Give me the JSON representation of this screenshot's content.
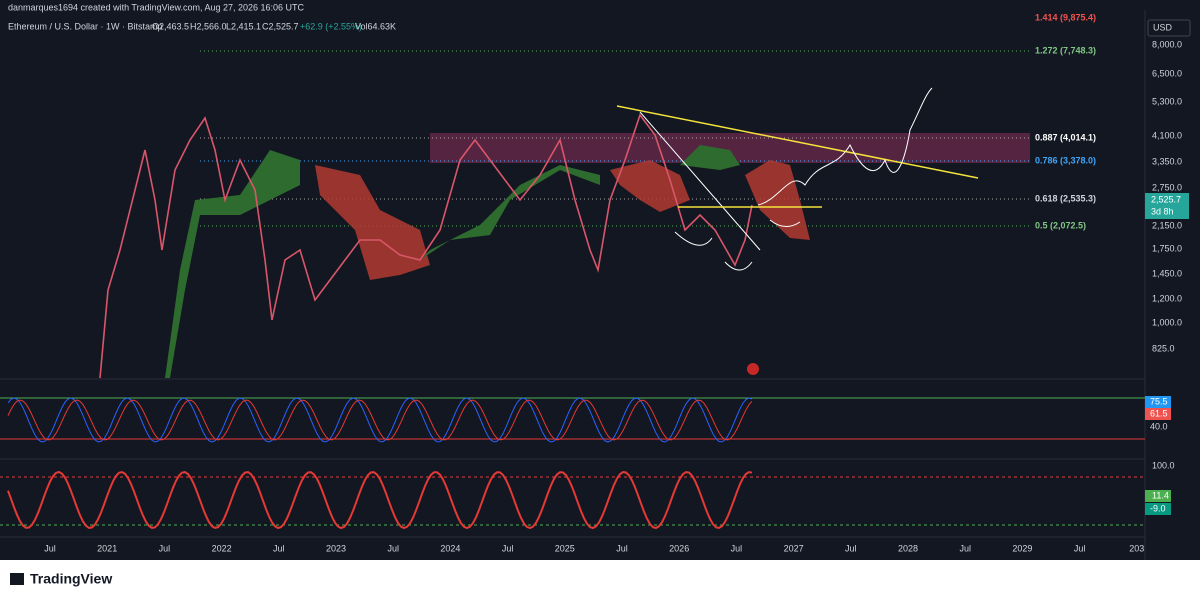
{
  "header": {
    "author_line": "danmarques1694 created with TradingView.com, Aug 27, 2026 16:06 UTC"
  },
  "symbol": {
    "title": "Ethereum / U.S. Dollar · 1W · Bitstamp",
    "open": "O2,463.5",
    "high": "H2,566.0",
    "low": "L2,415.1",
    "close": "C2,525.7",
    "change": "+62.9 (+2.55%)",
    "volume": "Vol64.63K"
  },
  "price_axis": {
    "currency": "USD",
    "labels": [
      "8,000.0",
      "6,500.0",
      "5,300.0",
      "4,100.0",
      "3,350.0",
      "2,750.0",
      "2,150.0",
      "1,750.0",
      "1,450.0",
      "1,200.0",
      "1,000.0",
      "825.0"
    ],
    "last_price": "2,525.7",
    "countdown": "3d 8h"
  },
  "fib_levels": [
    "1.414 (9,875.4)",
    "1.272 (7,748.3)",
    "0.887 (4,014.1)",
    "0.786 (3,378.0)",
    "0.618 (2,535.3)",
    "0.5 (2,072.5)"
  ],
  "rsi": {
    "labels": [
      "75.5",
      "61.5",
      "40.0"
    ]
  },
  "stoch": {
    "labels": [
      "100.0",
      "11.4",
      "-9.0"
    ]
  },
  "time_axis": [
    "Jul",
    "2021",
    "Jul",
    "2022",
    "Jul",
    "2023",
    "Jul",
    "2024",
    "Jul",
    "2025",
    "Jul",
    "2026",
    "Jul",
    "2027",
    "Jul",
    "2028",
    "Jul",
    "2029",
    "Jul",
    "203"
  ],
  "footer": {
    "brand": "TradingView"
  }
}
